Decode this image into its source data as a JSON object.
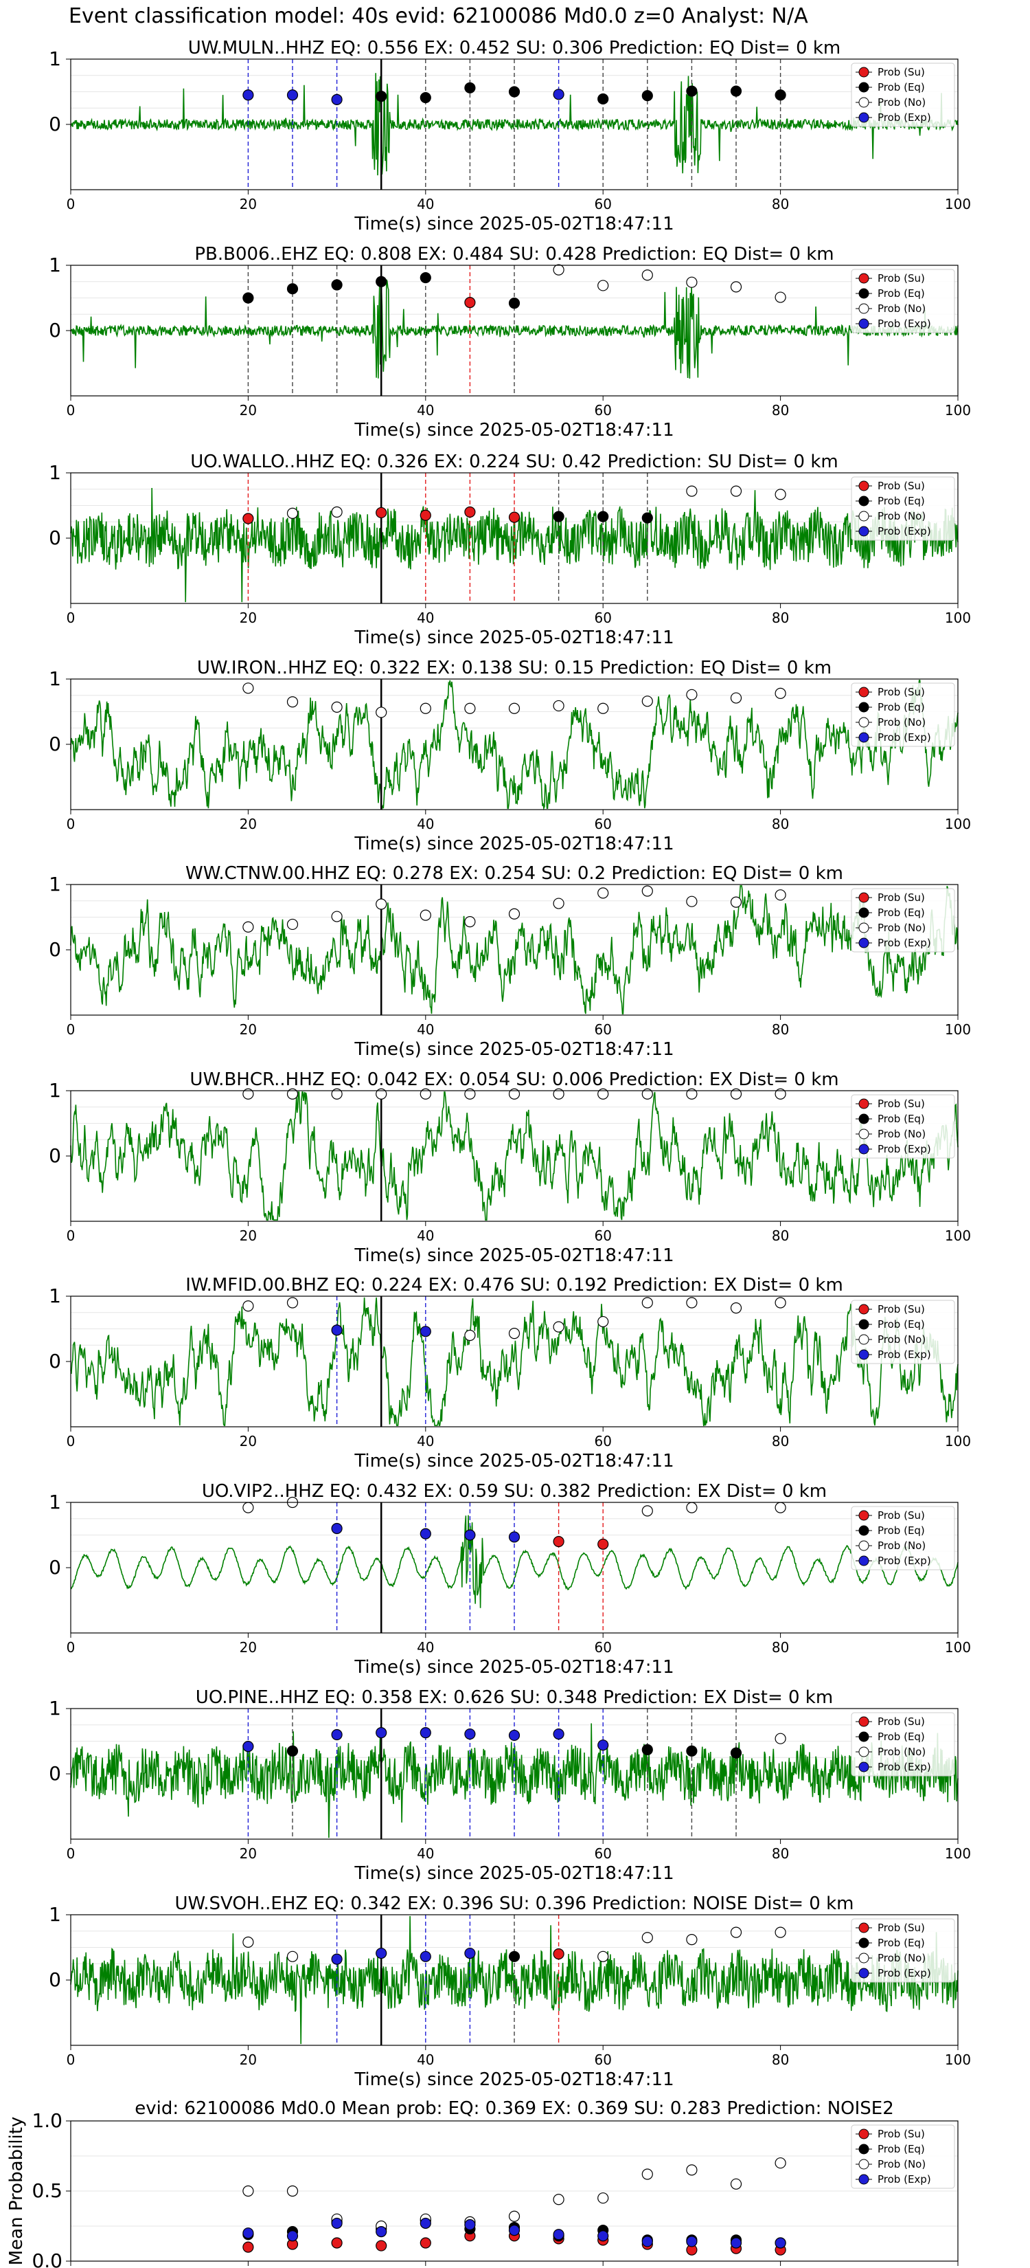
{
  "figure": {
    "title": "Event classification model: 40s evid: 62100086 Md0.0 z=0 Analyst: N/A",
    "legend_labels": [
      "Prob (Su)",
      "Prob (Eq)",
      "Prob (No)",
      "Prob (Exp)"
    ],
    "class_colors": {
      "su": "#e41a1c",
      "eq": "#000000",
      "no": "#ffffff",
      "exp": "#1f1fd6"
    },
    "signal_color": "#008000"
  },
  "chart_data": [
    {
      "type": "line",
      "title": "UW.MULN..HHZ   EQ: 0.556  EX: 0.452  SU: 0.306   Prediction: EQ    Dist= 0 km",
      "xlabel": "Time(s) since 2025-05-02T18:47:11",
      "xlim": [
        0,
        100
      ],
      "ylim": [
        -1,
        1
      ],
      "xticks": [
        "0",
        "20",
        "40",
        "60",
        "80",
        "100"
      ],
      "yticks": [
        "0",
        "1"
      ],
      "event_time": 35,
      "waveform_style": "spiky",
      "legend": "top-right",
      "windows": [
        {
          "t": 20,
          "cls": "exp",
          "p": 0.45
        },
        {
          "t": 25,
          "cls": "exp",
          "p": 0.45
        },
        {
          "t": 30,
          "cls": "exp",
          "p": 0.38
        },
        {
          "t": 35,
          "cls": "eq",
          "p": 0.43
        },
        {
          "t": 40,
          "cls": "eq",
          "p": 0.41
        },
        {
          "t": 45,
          "cls": "eq",
          "p": 0.56
        },
        {
          "t": 50,
          "cls": "eq",
          "p": 0.5
        },
        {
          "t": 55,
          "cls": "exp",
          "p": 0.46
        },
        {
          "t": 60,
          "cls": "eq",
          "p": 0.39
        },
        {
          "t": 65,
          "cls": "eq",
          "p": 0.44
        },
        {
          "t": 70,
          "cls": "eq",
          "p": 0.51
        },
        {
          "t": 75,
          "cls": "eq",
          "p": 0.51
        },
        {
          "t": 80,
          "cls": "eq",
          "p": 0.45
        }
      ]
    },
    {
      "type": "line",
      "title": "PB.B006..EHZ   EQ: 0.808  EX: 0.484  SU: 0.428   Prediction: EQ    Dist= 0 km",
      "xlabel": "Time(s) since 2025-05-02T18:47:11",
      "xlim": [
        0,
        100
      ],
      "ylim": [
        -1,
        1
      ],
      "xticks": [
        "0",
        "20",
        "40",
        "60",
        "80",
        "100"
      ],
      "yticks": [
        "0",
        "1"
      ],
      "event_time": 35,
      "waveform_style": "spiky",
      "legend": "top-right",
      "windows": [
        {
          "t": 20,
          "cls": "eq",
          "p": 0.5
        },
        {
          "t": 25,
          "cls": "eq",
          "p": 0.64
        },
        {
          "t": 30,
          "cls": "eq",
          "p": 0.7
        },
        {
          "t": 35,
          "cls": "eq",
          "p": 0.75
        },
        {
          "t": 40,
          "cls": "eq",
          "p": 0.81
        },
        {
          "t": 45,
          "cls": "su",
          "p": 0.43
        },
        {
          "t": 50,
          "cls": "eq",
          "p": 0.42
        },
        {
          "t": 55,
          "cls": "no",
          "p": 0.93
        },
        {
          "t": 60,
          "cls": "no",
          "p": 0.69
        },
        {
          "t": 65,
          "cls": "no",
          "p": 0.85
        },
        {
          "t": 70,
          "cls": "no",
          "p": 0.74
        },
        {
          "t": 75,
          "cls": "no",
          "p": 0.67
        },
        {
          "t": 80,
          "cls": "no",
          "p": 0.51
        }
      ]
    },
    {
      "type": "line",
      "title": "UO.WALLO..HHZ   EQ: 0.326  EX: 0.224  SU: 0.42   Prediction: SU    Dist= 0 km",
      "xlabel": "Time(s) since 2025-05-02T18:47:11",
      "xlim": [
        0,
        100
      ],
      "ylim": [
        -1,
        1
      ],
      "xticks": [
        "0",
        "20",
        "40",
        "60",
        "80",
        "100"
      ],
      "yticks": [
        "0",
        "1"
      ],
      "event_time": 35,
      "waveform_style": "dense",
      "legend": "top-right",
      "windows": [
        {
          "t": 20,
          "cls": "su",
          "p": 0.3
        },
        {
          "t": 25,
          "cls": "no",
          "p": 0.38
        },
        {
          "t": 30,
          "cls": "no",
          "p": 0.4
        },
        {
          "t": 35,
          "cls": "su",
          "p": 0.39
        },
        {
          "t": 40,
          "cls": "su",
          "p": 0.35
        },
        {
          "t": 45,
          "cls": "su",
          "p": 0.4
        },
        {
          "t": 50,
          "cls": "su",
          "p": 0.32
        },
        {
          "t": 55,
          "cls": "eq",
          "p": 0.33
        },
        {
          "t": 60,
          "cls": "eq",
          "p": 0.33
        },
        {
          "t": 65,
          "cls": "eq",
          "p": 0.31
        },
        {
          "t": 70,
          "cls": "no",
          "p": 0.72
        },
        {
          "t": 75,
          "cls": "no",
          "p": 0.72
        },
        {
          "t": 80,
          "cls": "no",
          "p": 0.67
        }
      ]
    },
    {
      "type": "line",
      "title": "UW.IRON..HHZ   EQ: 0.322  EX: 0.138  SU: 0.15   Prediction: EQ    Dist= 0 km",
      "xlabel": "Time(s) since 2025-05-02T18:47:11",
      "xlim": [
        0,
        100
      ],
      "ylim": [
        -1,
        1
      ],
      "xticks": [
        "0",
        "20",
        "40",
        "60",
        "80",
        "100"
      ],
      "yticks": [
        "0",
        "1"
      ],
      "event_time": 35,
      "waveform_style": "wavy",
      "legend": "top-right",
      "windows": [
        {
          "t": 20,
          "cls": "no",
          "p": 0.86
        },
        {
          "t": 25,
          "cls": "no",
          "p": 0.65
        },
        {
          "t": 30,
          "cls": "no",
          "p": 0.57
        },
        {
          "t": 35,
          "cls": "no",
          "p": 0.49
        },
        {
          "t": 40,
          "cls": "no",
          "p": 0.55
        },
        {
          "t": 45,
          "cls": "no",
          "p": 0.55
        },
        {
          "t": 50,
          "cls": "no",
          "p": 0.55
        },
        {
          "t": 55,
          "cls": "no",
          "p": 0.59
        },
        {
          "t": 60,
          "cls": "no",
          "p": 0.55
        },
        {
          "t": 65,
          "cls": "no",
          "p": 0.66
        },
        {
          "t": 70,
          "cls": "no",
          "p": 0.76
        },
        {
          "t": 75,
          "cls": "no",
          "p": 0.71
        },
        {
          "t": 80,
          "cls": "no",
          "p": 0.78
        }
      ]
    },
    {
      "type": "line",
      "title": "WW.CTNW.00.HHZ   EQ: 0.278  EX: 0.254  SU: 0.2   Prediction: EQ    Dist= 0 km",
      "xlabel": "Time(s) since 2025-05-02T18:47:11",
      "xlim": [
        0,
        100
      ],
      "ylim": [
        -1,
        1
      ],
      "xticks": [
        "0",
        "20",
        "40",
        "60",
        "80",
        "100"
      ],
      "yticks": [
        "0",
        "1"
      ],
      "event_time": 35,
      "waveform_style": "wavy",
      "legend": "top-right",
      "windows": [
        {
          "t": 20,
          "cls": "no",
          "p": 0.35
        },
        {
          "t": 25,
          "cls": "no",
          "p": 0.39
        },
        {
          "t": 30,
          "cls": "no",
          "p": 0.51
        },
        {
          "t": 35,
          "cls": "no",
          "p": 0.7
        },
        {
          "t": 40,
          "cls": "no",
          "p": 0.53
        },
        {
          "t": 45,
          "cls": "no",
          "p": 0.43
        },
        {
          "t": 50,
          "cls": "no",
          "p": 0.55
        },
        {
          "t": 55,
          "cls": "no",
          "p": 0.71
        },
        {
          "t": 60,
          "cls": "no",
          "p": 0.87
        },
        {
          "t": 65,
          "cls": "no",
          "p": 0.9
        },
        {
          "t": 70,
          "cls": "no",
          "p": 0.74
        },
        {
          "t": 75,
          "cls": "no",
          "p": 0.73
        },
        {
          "t": 80,
          "cls": "no",
          "p": 0.84
        }
      ]
    },
    {
      "type": "line",
      "title": "UW.BHCR..HHZ   EQ: 0.042  EX: 0.054  SU: 0.006   Prediction: EX    Dist= 0 km",
      "xlabel": "Time(s) since 2025-05-02T18:47:11",
      "xlim": [
        0,
        100
      ],
      "ylim": [
        -1,
        1
      ],
      "xticks": [
        "0",
        "20",
        "40",
        "60",
        "80",
        "100"
      ],
      "yticks": [
        "0",
        "1"
      ],
      "event_time": 35,
      "waveform_style": "wavy",
      "legend": "top-right",
      "windows": [
        {
          "t": 20,
          "cls": "no",
          "p": 0.95
        },
        {
          "t": 25,
          "cls": "no",
          "p": 0.95
        },
        {
          "t": 30,
          "cls": "no",
          "p": 0.95
        },
        {
          "t": 35,
          "cls": "no",
          "p": 0.95
        },
        {
          "t": 40,
          "cls": "no",
          "p": 0.95
        },
        {
          "t": 45,
          "cls": "no",
          "p": 0.95
        },
        {
          "t": 50,
          "cls": "no",
          "p": 0.95
        },
        {
          "t": 55,
          "cls": "no",
          "p": 0.95
        },
        {
          "t": 60,
          "cls": "no",
          "p": 0.95
        },
        {
          "t": 65,
          "cls": "no",
          "p": 0.95
        },
        {
          "t": 70,
          "cls": "no",
          "p": 0.95
        },
        {
          "t": 75,
          "cls": "no",
          "p": 0.95
        },
        {
          "t": 80,
          "cls": "no",
          "p": 0.95
        }
      ]
    },
    {
      "type": "line",
      "title": "IW.MFID.00.BHZ   EQ: 0.224  EX: 0.476  SU: 0.192   Prediction: EX    Dist= 0 km",
      "xlabel": "Time(s) since 2025-05-02T18:47:11",
      "xlim": [
        0,
        100
      ],
      "ylim": [
        -1,
        1
      ],
      "xticks": [
        "0",
        "20",
        "40",
        "60",
        "80",
        "100"
      ],
      "yticks": [
        "0",
        "1"
      ],
      "event_time": 35,
      "waveform_style": "wavy",
      "legend": "top-right",
      "windows": [
        {
          "t": 20,
          "cls": "no",
          "p": 0.85
        },
        {
          "t": 25,
          "cls": "no",
          "p": 0.9
        },
        {
          "t": 30,
          "cls": "exp",
          "p": 0.48
        },
        {
          "t": 40,
          "cls": "exp",
          "p": 0.46
        },
        {
          "t": 45,
          "cls": "no",
          "p": 0.4
        },
        {
          "t": 50,
          "cls": "no",
          "p": 0.43
        },
        {
          "t": 55,
          "cls": "no",
          "p": 0.53
        },
        {
          "t": 60,
          "cls": "no",
          "p": 0.61
        },
        {
          "t": 65,
          "cls": "no",
          "p": 0.9
        },
        {
          "t": 70,
          "cls": "no",
          "p": 0.9
        },
        {
          "t": 75,
          "cls": "no",
          "p": 0.82
        },
        {
          "t": 80,
          "cls": "no",
          "p": 0.9
        }
      ]
    },
    {
      "type": "line",
      "title": "UO.VIP2..HHZ   EQ: 0.432  EX: 0.59  SU: 0.382   Prediction: EX    Dist= 0 km",
      "xlabel": "Time(s) since 2025-05-02T18:47:11",
      "xlim": [
        0,
        100
      ],
      "ylim": [
        -1,
        1
      ],
      "xticks": [
        "0",
        "20",
        "40",
        "60",
        "80",
        "100"
      ],
      "yticks": [
        "0",
        "1"
      ],
      "event_time": 35,
      "waveform_style": "smooth",
      "legend": "top-right",
      "windows": [
        {
          "t": 20,
          "cls": "no",
          "p": 0.92
        },
        {
          "t": 25,
          "cls": "no",
          "p": 1.0
        },
        {
          "t": 30,
          "cls": "exp",
          "p": 0.6
        },
        {
          "t": 40,
          "cls": "exp",
          "p": 0.52
        },
        {
          "t": 45,
          "cls": "exp",
          "p": 0.5
        },
        {
          "t": 50,
          "cls": "exp",
          "p": 0.47
        },
        {
          "t": 55,
          "cls": "su",
          "p": 0.4
        },
        {
          "t": 60,
          "cls": "su",
          "p": 0.36
        },
        {
          "t": 65,
          "cls": "no",
          "p": 0.87
        },
        {
          "t": 70,
          "cls": "no",
          "p": 0.92
        },
        {
          "t": 80,
          "cls": "no",
          "p": 0.92
        }
      ]
    },
    {
      "type": "line",
      "title": "UO.PINE..HHZ   EQ: 0.358  EX: 0.626  SU: 0.348   Prediction: EX    Dist= 0 km",
      "xlabel": "Time(s) since 2025-05-02T18:47:11",
      "xlim": [
        0,
        100
      ],
      "ylim": [
        -1,
        1
      ],
      "xticks": [
        "0",
        "20",
        "40",
        "60",
        "80",
        "100"
      ],
      "yticks": [
        "0",
        "1"
      ],
      "event_time": 35,
      "waveform_style": "dense",
      "legend": "top-right",
      "windows": [
        {
          "t": 20,
          "cls": "exp",
          "p": 0.42
        },
        {
          "t": 25,
          "cls": "eq",
          "p": 0.35
        },
        {
          "t": 30,
          "cls": "exp",
          "p": 0.6
        },
        {
          "t": 35,
          "cls": "exp",
          "p": 0.63
        },
        {
          "t": 40,
          "cls": "exp",
          "p": 0.63
        },
        {
          "t": 45,
          "cls": "exp",
          "p": 0.61
        },
        {
          "t": 50,
          "cls": "exp",
          "p": 0.59
        },
        {
          "t": 55,
          "cls": "exp",
          "p": 0.61
        },
        {
          "t": 60,
          "cls": "exp",
          "p": 0.44
        },
        {
          "t": 65,
          "cls": "eq",
          "p": 0.37
        },
        {
          "t": 70,
          "cls": "eq",
          "p": 0.35
        },
        {
          "t": 75,
          "cls": "eq",
          "p": 0.32
        },
        {
          "t": 80,
          "cls": "no",
          "p": 0.54
        }
      ]
    },
    {
      "type": "line",
      "title": "UW.SVOH..EHZ   EQ: 0.342  EX: 0.396  SU: 0.396   Prediction: NOISE    Dist= 0 km",
      "xlabel": "Time(s) since 2025-05-02T18:47:11",
      "xlim": [
        0,
        100
      ],
      "ylim": [
        -1,
        1
      ],
      "xticks": [
        "0",
        "20",
        "40",
        "60",
        "80",
        "100"
      ],
      "yticks": [
        "0",
        "1"
      ],
      "event_time": 35,
      "waveform_style": "dense",
      "legend": "top-right",
      "windows": [
        {
          "t": 20,
          "cls": "no",
          "p": 0.58
        },
        {
          "t": 25,
          "cls": "no",
          "p": 0.36
        },
        {
          "t": 30,
          "cls": "exp",
          "p": 0.32
        },
        {
          "t": 35,
          "cls": "exp",
          "p": 0.41
        },
        {
          "t": 40,
          "cls": "exp",
          "p": 0.36
        },
        {
          "t": 45,
          "cls": "exp",
          "p": 0.41
        },
        {
          "t": 50,
          "cls": "eq",
          "p": 0.36
        },
        {
          "t": 55,
          "cls": "su",
          "p": 0.4
        },
        {
          "t": 60,
          "cls": "no",
          "p": 0.36
        },
        {
          "t": 65,
          "cls": "no",
          "p": 0.65
        },
        {
          "t": 70,
          "cls": "no",
          "p": 0.62
        },
        {
          "t": 75,
          "cls": "no",
          "p": 0.73
        },
        {
          "t": 80,
          "cls": "no",
          "p": 0.73
        }
      ]
    },
    {
      "type": "scatter",
      "title": "evid: 62100086  Md0.0   Mean prob:   EQ: 0.369  EX: 0.369  SU: 0.283   Prediction: NOISE2",
      "xlabel": "",
      "ylabel": "Mean Probability",
      "xlim": [
        0,
        100
      ],
      "ylim": [
        0,
        1
      ],
      "xticks": [
        "0",
        "20",
        "40",
        "60",
        "80",
        "100"
      ],
      "yticks": [
        "0.0",
        "0.5",
        "1.0"
      ],
      "legend": "top-right",
      "x": [
        20,
        25,
        30,
        35,
        40,
        45,
        50,
        55,
        60,
        65,
        70,
        75,
        80
      ],
      "series": [
        {
          "name": "Prob (Su)",
          "cls": "su",
          "values": [
            0.1,
            0.12,
            0.13,
            0.11,
            0.13,
            0.18,
            0.18,
            0.16,
            0.15,
            0.12,
            0.08,
            0.09,
            0.08
          ]
        },
        {
          "name": "Prob (Eq)",
          "cls": "eq",
          "values": [
            0.19,
            0.21,
            0.28,
            0.23,
            0.29,
            0.23,
            0.24,
            0.18,
            0.22,
            0.15,
            0.15,
            0.15,
            0.13
          ]
        },
        {
          "name": "Prob (No)",
          "cls": "no",
          "values": [
            0.5,
            0.5,
            0.3,
            0.25,
            0.3,
            0.28,
            0.32,
            0.44,
            0.45,
            0.62,
            0.65,
            0.55,
            0.7
          ]
        },
        {
          "name": "Prob (Exp)",
          "cls": "exp",
          "values": [
            0.2,
            0.18,
            0.27,
            0.21,
            0.27,
            0.26,
            0.22,
            0.19,
            0.18,
            0.14,
            0.14,
            0.13,
            0.13
          ]
        }
      ]
    }
  ]
}
